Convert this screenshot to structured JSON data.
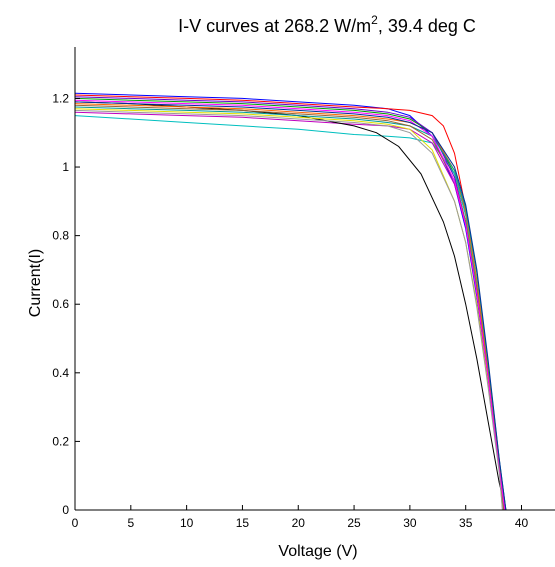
{
  "chart_data": {
    "type": "line",
    "title": "I-V curves at 268.2 W/m",
    "title_superscript": "2",
    "title_suffix": ", 39.4 deg C",
    "xlabel": "Voltage (V)",
    "ylabel": "Current(I)",
    "xlim": [
      0,
      43
    ],
    "ylim": [
      0,
      1.35
    ],
    "xticks": [
      0,
      5,
      10,
      15,
      20,
      25,
      30,
      35,
      40
    ],
    "yticks": [
      0,
      0.2,
      0.4,
      0.6,
      0.8,
      1,
      1.2
    ],
    "ytick_labels": [
      "0",
      "0.2",
      "0.4",
      "0.6",
      "0.8",
      "1",
      "1.2"
    ],
    "grid": false,
    "box": false,
    "series": [
      {
        "color": "#0000ff",
        "x": [
          0,
          5,
          10,
          15,
          20,
          25,
          28,
          30,
          32,
          34,
          35,
          36,
          37,
          38,
          38.5
        ],
        "y": [
          1.215,
          1.21,
          1.205,
          1.2,
          1.19,
          1.18,
          1.17,
          1.15,
          1.09,
          0.95,
          0.82,
          0.62,
          0.38,
          0.12,
          0.0
        ]
      },
      {
        "color": "#ff0000",
        "x": [
          0,
          5,
          10,
          15,
          20,
          25,
          28,
          30,
          32,
          33,
          34,
          35,
          36,
          37,
          38,
          38.6
        ],
        "y": [
          1.21,
          1.205,
          1.2,
          1.195,
          1.185,
          1.175,
          1.17,
          1.165,
          1.15,
          1.12,
          1.04,
          0.88,
          0.66,
          0.4,
          0.14,
          0.0
        ]
      },
      {
        "color": "#00a000",
        "x": [
          0,
          5,
          10,
          15,
          20,
          25,
          28,
          30,
          32,
          34,
          35,
          36,
          37,
          38,
          38.4
        ],
        "y": [
          1.2,
          1.195,
          1.19,
          1.185,
          1.175,
          1.165,
          1.155,
          1.14,
          1.1,
          0.98,
          0.86,
          0.66,
          0.42,
          0.14,
          0.0
        ]
      },
      {
        "color": "#00bfbf",
        "x": [
          0,
          5,
          10,
          15,
          20,
          25,
          28,
          30,
          32,
          34,
          35,
          36,
          37,
          38,
          38.5
        ],
        "y": [
          1.15,
          1.14,
          1.13,
          1.12,
          1.11,
          1.095,
          1.09,
          1.085,
          1.07,
          0.98,
          0.86,
          0.66,
          0.4,
          0.13,
          0.0
        ]
      },
      {
        "color": "#bf00bf",
        "x": [
          0,
          5,
          10,
          15,
          20,
          25,
          28,
          30,
          32,
          34,
          35,
          36,
          37,
          38,
          38.3
        ],
        "y": [
          1.16,
          1.155,
          1.15,
          1.145,
          1.135,
          1.125,
          1.12,
          1.11,
          1.07,
          0.95,
          0.83,
          0.63,
          0.39,
          0.12,
          0.0
        ]
      },
      {
        "color": "#000000",
        "x": [
          0,
          5,
          10,
          15,
          20,
          25,
          27,
          29,
          31,
          33,
          34,
          35,
          36,
          37,
          38,
          38.6
        ],
        "y": [
          1.19,
          1.185,
          1.175,
          1.165,
          1.15,
          1.12,
          1.1,
          1.06,
          0.98,
          0.84,
          0.74,
          0.6,
          0.44,
          0.26,
          0.08,
          0.0
        ]
      },
      {
        "color": "#e0e000",
        "x": [
          0,
          5,
          10,
          15,
          20,
          25,
          28,
          30,
          32,
          34,
          35,
          36,
          37,
          38,
          38.4
        ],
        "y": [
          1.17,
          1.165,
          1.16,
          1.155,
          1.145,
          1.135,
          1.125,
          1.11,
          1.05,
          0.9,
          0.78,
          0.6,
          0.37,
          0.12,
          0.0
        ]
      },
      {
        "color": "#ff6600",
        "x": [
          0,
          5,
          10,
          15,
          20,
          25,
          28,
          30,
          32,
          34,
          35,
          36,
          37,
          38,
          38.5
        ],
        "y": [
          1.185,
          1.18,
          1.175,
          1.17,
          1.16,
          1.15,
          1.14,
          1.13,
          1.1,
          0.99,
          0.87,
          0.67,
          0.41,
          0.13,
          0.0
        ]
      },
      {
        "color": "#6600cc",
        "x": [
          0,
          5,
          10,
          15,
          20,
          25,
          28,
          30,
          32,
          34,
          35,
          36,
          37,
          38,
          38.5
        ],
        "y": [
          1.205,
          1.2,
          1.195,
          1.19,
          1.18,
          1.17,
          1.16,
          1.145,
          1.1,
          0.97,
          0.84,
          0.64,
          0.39,
          0.12,
          0.0
        ]
      },
      {
        "color": "#009999",
        "x": [
          0,
          5,
          10,
          15,
          20,
          25,
          28,
          30,
          32,
          34,
          35,
          36,
          37,
          38,
          38.6
        ],
        "y": [
          1.175,
          1.17,
          1.165,
          1.16,
          1.15,
          1.14,
          1.13,
          1.12,
          1.09,
          0.99,
          0.88,
          0.69,
          0.43,
          0.15,
          0.0
        ]
      },
      {
        "color": "#996633",
        "x": [
          0,
          5,
          10,
          15,
          20,
          25,
          28,
          30,
          32,
          34,
          35,
          36,
          37,
          38,
          38.4
        ],
        "y": [
          1.18,
          1.175,
          1.17,
          1.165,
          1.155,
          1.145,
          1.135,
          1.12,
          1.08,
          0.96,
          0.84,
          0.64,
          0.4,
          0.13,
          0.0
        ]
      },
      {
        "color": "#ff00ff",
        "x": [
          0,
          5,
          10,
          15,
          20,
          25,
          28,
          30,
          32,
          34,
          35,
          36,
          37,
          38,
          38.5
        ],
        "y": [
          1.195,
          1.19,
          1.185,
          1.18,
          1.17,
          1.16,
          1.15,
          1.135,
          1.09,
          0.96,
          0.83,
          0.63,
          0.39,
          0.12,
          0.0
        ]
      },
      {
        "color": "#999999",
        "x": [
          0,
          5,
          10,
          15,
          20,
          25,
          28,
          30,
          32,
          34,
          35,
          36,
          37,
          38,
          38.3
        ],
        "y": [
          1.165,
          1.16,
          1.155,
          1.15,
          1.14,
          1.13,
          1.12,
          1.1,
          1.04,
          0.9,
          0.78,
          0.59,
          0.36,
          0.11,
          0.0
        ]
      },
      {
        "color": "#003399",
        "x": [
          0,
          5,
          10,
          15,
          20,
          25,
          28,
          30,
          32,
          34,
          35,
          36,
          37,
          38,
          38.6
        ],
        "y": [
          1.19,
          1.185,
          1.18,
          1.175,
          1.165,
          1.155,
          1.145,
          1.13,
          1.1,
          1.0,
          0.89,
          0.7,
          0.44,
          0.15,
          0.0
        ]
      }
    ]
  }
}
